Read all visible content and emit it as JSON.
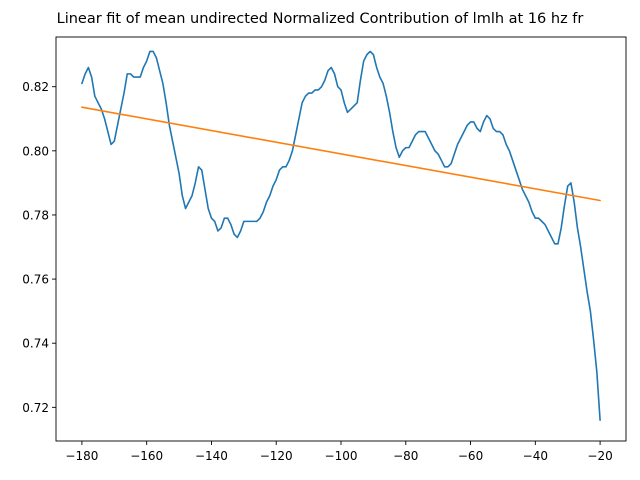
{
  "chart_data": {
    "type": "line",
    "title": "Linear fit of mean undirected Normalized Contribution of lmlh at 16 hz fr",
    "xlabel": "",
    "ylabel": "",
    "xlim": [
      -188,
      -12
    ],
    "ylim": [
      0.7095,
      0.8355
    ],
    "xticks": [
      -180,
      -160,
      -140,
      -120,
      -100,
      -80,
      -60,
      -40,
      -20
    ],
    "yticks": [
      0.72,
      0.74,
      0.76,
      0.78,
      0.8,
      0.82
    ],
    "ytick_labels": [
      "0.72",
      "0.74",
      "0.76",
      "0.78",
      "0.80",
      "0.82"
    ],
    "grid": false,
    "legend": "none",
    "series": [
      {
        "color": "#1f77b4",
        "points": [
          [
            -180,
            0.821
          ],
          [
            -179,
            0.824
          ],
          [
            -178,
            0.826
          ],
          [
            -177,
            0.823
          ],
          [
            -176,
            0.817
          ],
          [
            -175,
            0.815
          ],
          [
            -174,
            0.813
          ],
          [
            -173,
            0.81
          ],
          [
            -172,
            0.806
          ],
          [
            -171,
            0.802
          ],
          [
            -170,
            0.803
          ],
          [
            -169,
            0.808
          ],
          [
            -168,
            0.813
          ],
          [
            -167,
            0.818
          ],
          [
            -166,
            0.824
          ],
          [
            -165,
            0.824
          ],
          [
            -164,
            0.823
          ],
          [
            -163,
            0.823
          ],
          [
            -162,
            0.823
          ],
          [
            -161,
            0.826
          ],
          [
            -160,
            0.828
          ],
          [
            -159,
            0.831
          ],
          [
            -158,
            0.831
          ],
          [
            -157,
            0.829
          ],
          [
            -156,
            0.825
          ],
          [
            -155,
            0.821
          ],
          [
            -154,
            0.815
          ],
          [
            -153,
            0.808
          ],
          [
            -152,
            0.803
          ],
          [
            -151,
            0.798
          ],
          [
            -150,
            0.793
          ],
          [
            -149,
            0.786
          ],
          [
            -148,
            0.782
          ],
          [
            -147,
            0.784
          ],
          [
            -146,
            0.786
          ],
          [
            -145,
            0.79
          ],
          [
            -144,
            0.795
          ],
          [
            -143,
            0.794
          ],
          [
            -142,
            0.788
          ],
          [
            -141,
            0.782
          ],
          [
            -140,
            0.779
          ],
          [
            -139,
            0.778
          ],
          [
            -138,
            0.775
          ],
          [
            -137,
            0.776
          ],
          [
            -136,
            0.779
          ],
          [
            -135,
            0.779
          ],
          [
            -134,
            0.777
          ],
          [
            -133,
            0.774
          ],
          [
            -132,
            0.773
          ],
          [
            -131,
            0.775
          ],
          [
            -130,
            0.778
          ],
          [
            -129,
            0.778
          ],
          [
            -128,
            0.778
          ],
          [
            -127,
            0.778
          ],
          [
            -126,
            0.778
          ],
          [
            -125,
            0.779
          ],
          [
            -124,
            0.781
          ],
          [
            -123,
            0.784
          ],
          [
            -122,
            0.786
          ],
          [
            -121,
            0.789
          ],
          [
            -120,
            0.791
          ],
          [
            -119,
            0.794
          ],
          [
            -118,
            0.795
          ],
          [
            -117,
            0.795
          ],
          [
            -116,
            0.797
          ],
          [
            -115,
            0.8
          ],
          [
            -114,
            0.805
          ],
          [
            -113,
            0.81
          ],
          [
            -112,
            0.815
          ],
          [
            -111,
            0.817
          ],
          [
            -110,
            0.818
          ],
          [
            -109,
            0.818
          ],
          [
            -108,
            0.819
          ],
          [
            -107,
            0.819
          ],
          [
            -106,
            0.82
          ],
          [
            -105,
            0.822
          ],
          [
            -104,
            0.825
          ],
          [
            -103,
            0.826
          ],
          [
            -102,
            0.824
          ],
          [
            -101,
            0.82
          ],
          [
            -100,
            0.819
          ],
          [
            -99,
            0.815
          ],
          [
            -98,
            0.812
          ],
          [
            -97,
            0.813
          ],
          [
            -96,
            0.814
          ],
          [
            -95,
            0.815
          ],
          [
            -94,
            0.822
          ],
          [
            -93,
            0.828
          ],
          [
            -92,
            0.83
          ],
          [
            -91,
            0.831
          ],
          [
            -90,
            0.83
          ],
          [
            -89,
            0.826
          ],
          [
            -88,
            0.823
          ],
          [
            -87,
            0.821
          ],
          [
            -86,
            0.817
          ],
          [
            -85,
            0.812
          ],
          [
            -84,
            0.806
          ],
          [
            -83,
            0.801
          ],
          [
            -82,
            0.798
          ],
          [
            -81,
            0.8
          ],
          [
            -80,
            0.801
          ],
          [
            -79,
            0.801
          ],
          [
            -78,
            0.803
          ],
          [
            -77,
            0.805
          ],
          [
            -76,
            0.806
          ],
          [
            -75,
            0.806
          ],
          [
            -74,
            0.806
          ],
          [
            -73,
            0.804
          ],
          [
            -72,
            0.802
          ],
          [
            -71,
            0.8
          ],
          [
            -70,
            0.799
          ],
          [
            -69,
            0.797
          ],
          [
            -68,
            0.795
          ],
          [
            -67,
            0.795
          ],
          [
            -66,
            0.796
          ],
          [
            -65,
            0.799
          ],
          [
            -64,
            0.802
          ],
          [
            -63,
            0.804
          ],
          [
            -62,
            0.806
          ],
          [
            -61,
            0.808
          ],
          [
            -60,
            0.809
          ],
          [
            -59,
            0.809
          ],
          [
            -58,
            0.807
          ],
          [
            -57,
            0.806
          ],
          [
            -56,
            0.809
          ],
          [
            -55,
            0.811
          ],
          [
            -54,
            0.81
          ],
          [
            -53,
            0.807
          ],
          [
            -52,
            0.806
          ],
          [
            -51,
            0.806
          ],
          [
            -50,
            0.805
          ],
          [
            -49,
            0.802
          ],
          [
            -48,
            0.8
          ],
          [
            -47,
            0.797
          ],
          [
            -46,
            0.794
          ],
          [
            -45,
            0.791
          ],
          [
            -44,
            0.788
          ],
          [
            -43,
            0.786
          ],
          [
            -42,
            0.784
          ],
          [
            -41,
            0.781
          ],
          [
            -40,
            0.779
          ],
          [
            -39,
            0.779
          ],
          [
            -38,
            0.778
          ],
          [
            -37,
            0.777
          ],
          [
            -36,
            0.775
          ],
          [
            -35,
            0.773
          ],
          [
            -34,
            0.771
          ],
          [
            -33,
            0.771
          ],
          [
            -32,
            0.776
          ],
          [
            -31,
            0.783
          ],
          [
            -30,
            0.789
          ],
          [
            -29,
            0.79
          ],
          [
            -28,
            0.784
          ],
          [
            -27,
            0.776
          ],
          [
            -26,
            0.77
          ],
          [
            -25,
            0.763
          ],
          [
            -24,
            0.756
          ],
          [
            -23,
            0.75
          ],
          [
            -22,
            0.741
          ],
          [
            -21,
            0.731
          ],
          [
            -20,
            0.716
          ]
        ]
      },
      {
        "color": "#ff7f0e",
        "points": [
          [
            -180,
            0.8136
          ],
          [
            -20,
            0.7845
          ]
        ]
      }
    ]
  }
}
